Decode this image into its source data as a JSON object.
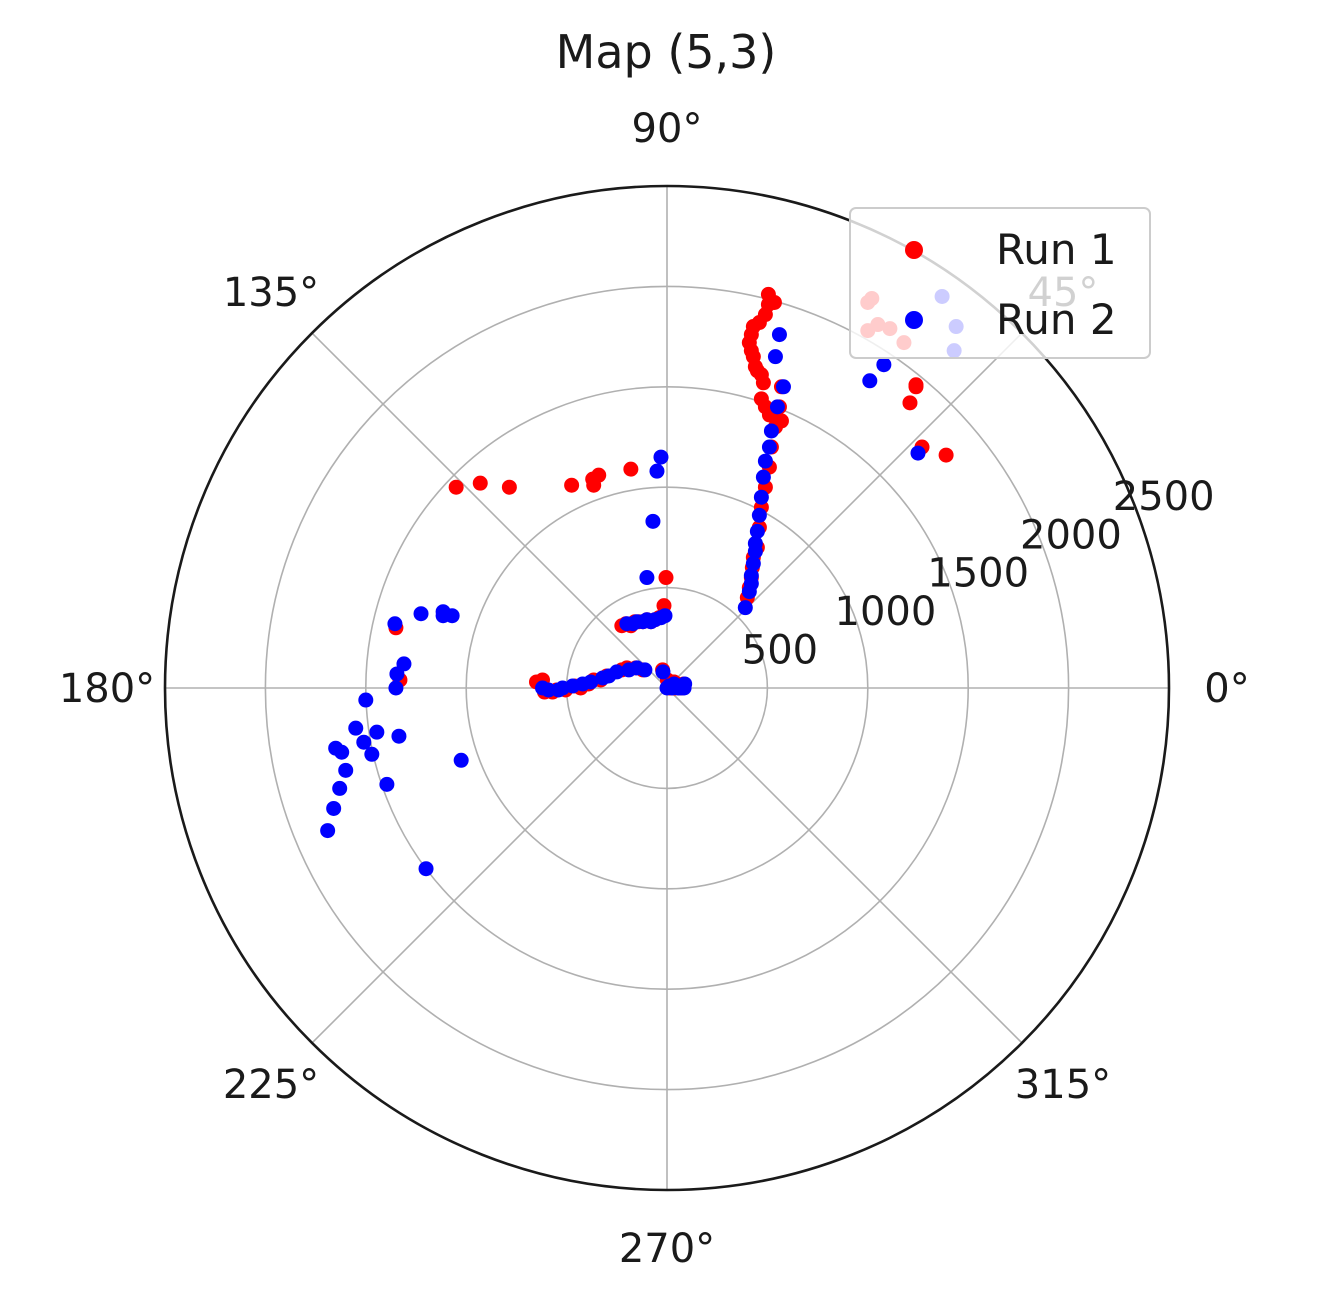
{
  "chart_data": {
    "type": "scatter",
    "projection": "polar",
    "title": "Map (5,3)",
    "theta_unit": "degrees",
    "r_unit": "mm",
    "rlim": [
      0,
      2500
    ],
    "r_ticks": [
      500,
      1000,
      1500,
      2000,
      2500
    ],
    "r_tick_labels": [
      "500",
      "1000",
      "1500",
      "2000",
      "2500"
    ],
    "theta_ticks": [
      0,
      45,
      90,
      135,
      180,
      225,
      270,
      315
    ],
    "theta_tick_labels": [
      "0°",
      "45°",
      "90°",
      "135°",
      "180°",
      "225°",
      "270°",
      "315°"
    ],
    "grid": true,
    "legend": {
      "position": "upper-right"
    },
    "series": [
      {
        "name": "Run 1",
        "color": "#ff0000",
        "points": [
          [
            2,
            40
          ],
          [
            8,
            20
          ],
          [
            12,
            0
          ],
          [
            15,
            10
          ],
          [
            19,
            0
          ],
          [
            22,
            0
          ],
          [
            25,
            30
          ],
          [
            28,
            0
          ],
          [
            32,
            30
          ],
          [
            35,
            30
          ],
          [
            40,
            0
          ],
          [
            45,
            10
          ],
          [
            48,
            20
          ],
          [
            52,
            10
          ],
          [
            57,
            10
          ],
          [
            60,
            0
          ],
          [
            64,
            0
          ],
          [
            68,
            10
          ],
          [
            72,
            0
          ],
          [
            75,
            0
          ],
          [
            80,
            10
          ],
          [
            83,
            20
          ],
          [
            -22,
            90
          ],
          [
            -120,
            90
          ],
          [
            -155,
            100
          ],
          [
            -200,
            100
          ],
          [
            -225,
            90
          ],
          [
            -300,
            60
          ],
          [
            -330,
            40
          ],
          [
            -365,
            40
          ],
          [
            -390,
            20
          ],
          [
            -430,
            0
          ],
          [
            -460,
            10
          ],
          [
            -505,
            -10
          ],
          [
            -550,
            -10
          ],
          [
            -570,
            -20
          ],
          [
            -610,
            -20
          ],
          [
            -620,
            40
          ],
          [
            -650,
            30
          ],
          [
            -225,
            310
          ],
          [
            -205,
            320
          ],
          [
            -180,
            310
          ],
          [
            -160,
            330
          ],
          [
            -140,
            330
          ],
          [
            -120,
            330
          ],
          [
            -100,
            340
          ],
          [
            -80,
            330
          ],
          [
            -60,
            340
          ],
          [
            -40,
            350
          ],
          [
            -20,
            360
          ],
          [
            -15,
            410
          ],
          [
            -5,
            550
          ],
          [
            400,
            450
          ],
          [
            410,
            500
          ],
          [
            420,
            550
          ],
          [
            425,
            600
          ],
          [
            430,
            650
          ],
          [
            450,
            700
          ],
          [
            460,
            800
          ],
          [
            470,
            900
          ],
          [
            490,
            1000
          ],
          [
            510,
            1100
          ],
          [
            520,
            1200
          ],
          [
            540,
            1300
          ],
          [
            560,
            1400
          ],
          [
            570,
            1500
          ],
          [
            520,
            1380
          ],
          [
            570,
            1330
          ],
          [
            535,
            1920
          ],
          [
            505,
            1960
          ],
          [
            505,
            1910
          ],
          [
            490,
            1860
          ],
          [
            460,
            1820
          ],
          [
            430,
            1800
          ],
          [
            420,
            1760
          ],
          [
            410,
            1720
          ],
          [
            420,
            1680
          ],
          [
            430,
            1650
          ],
          [
            440,
            1600
          ],
          [
            450,
            1580
          ],
          [
            470,
            1560
          ],
          [
            480,
            1520
          ],
          [
            470,
            1440
          ],
          [
            490,
            1400
          ],
          [
            510,
            1360
          ],
          [
            1180,
            1720
          ],
          [
            1110,
            1790
          ],
          [
            1050,
            1810
          ],
          [
            1000,
            1780
          ],
          [
            1390,
            1160
          ],
          [
            1270,
            1200
          ],
          [
            1210,
            1420
          ],
          [
            1240,
            1500
          ],
          [
            1240,
            1510
          ],
          [
            1000,
            1920
          ],
          [
            1020,
            1940
          ],
          [
            -1050,
            1000
          ],
          [
            -930,
            1020
          ],
          [
            -785,
            1000
          ],
          [
            -475,
            1010
          ],
          [
            -365,
            1010
          ],
          [
            -370,
            1040
          ],
          [
            -180,
            1090
          ],
          [
            -340,
            1060
          ],
          [
            -1350,
            300
          ],
          [
            -1330,
            40
          ]
        ]
      },
      {
        "name": "Run 2",
        "color": "#0000ff",
        "points": [
          [
            0,
            0
          ],
          [
            10,
            10
          ],
          [
            25,
            0
          ],
          [
            35,
            20
          ],
          [
            45,
            10
          ],
          [
            55,
            0
          ],
          [
            62,
            10
          ],
          [
            70,
            0
          ],
          [
            78,
            10
          ],
          [
            85,
            0
          ],
          [
            88,
            20
          ],
          [
            -20,
            80
          ],
          [
            -110,
            90
          ],
          [
            -150,
            100
          ],
          [
            -190,
            90
          ],
          [
            -250,
            80
          ],
          [
            -290,
            60
          ],
          [
            -320,
            50
          ],
          [
            -380,
            30
          ],
          [
            -420,
            20
          ],
          [
            -470,
            10
          ],
          [
            -520,
            0
          ],
          [
            -540,
            -10
          ],
          [
            -590,
            -10
          ],
          [
            -620,
            0
          ],
          [
            -1500,
            -60
          ],
          [
            -200,
            320
          ],
          [
            -170,
            320
          ],
          [
            -150,
            330
          ],
          [
            -120,
            330
          ],
          [
            -100,
            340
          ],
          [
            -80,
            330
          ],
          [
            -60,
            340
          ],
          [
            -30,
            350
          ],
          [
            -10,
            360
          ],
          [
            -100,
            550
          ],
          [
            -70,
            830
          ],
          [
            -50,
            1080
          ],
          [
            -30,
            1150
          ],
          [
            390,
            400
          ],
          [
            410,
            480
          ],
          [
            420,
            520
          ],
          [
            420,
            560
          ],
          [
            430,
            620
          ],
          [
            440,
            680
          ],
          [
            440,
            720
          ],
          [
            450,
            780
          ],
          [
            460,
            860
          ],
          [
            470,
            950
          ],
          [
            480,
            1050
          ],
          [
            490,
            1130
          ],
          [
            510,
            1200
          ],
          [
            520,
            1280
          ],
          [
            550,
            1400
          ],
          [
            580,
            1500
          ],
          [
            540,
            1650
          ],
          [
            560,
            1760
          ],
          [
            1010,
            1530
          ],
          [
            1080,
            1610
          ],
          [
            1250,
            1170
          ],
          [
            1430,
            1680
          ],
          [
            1440,
            1800
          ],
          [
            1370,
            1950
          ],
          [
            -1070,
            360
          ],
          [
            -1310,
            120
          ],
          [
            -1350,
            0
          ],
          [
            -1510,
            -270
          ],
          [
            -1550,
            -200
          ],
          [
            -1650,
            -300
          ],
          [
            -1620,
            -320
          ],
          [
            -1600,
            -410
          ],
          [
            -1630,
            -500
          ],
          [
            -1660,
            -600
          ],
          [
            -1690,
            -710
          ],
          [
            -1115,
            380
          ],
          [
            -1115,
            360
          ],
          [
            -1225,
            370
          ],
          [
            -1355,
            320
          ],
          [
            -1345,
            70
          ],
          [
            -1445,
            -220
          ],
          [
            -1335,
            -240
          ],
          [
            -1470,
            -330
          ],
          [
            -1395,
            -480
          ],
          [
            -1200,
            -900
          ],
          [
            -1025,
            -360
          ]
        ]
      }
    ]
  }
}
